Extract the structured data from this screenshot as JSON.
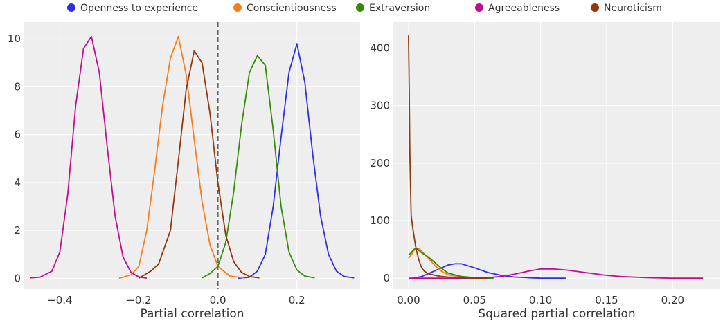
{
  "legend": {
    "placement": "top-center",
    "entries": [
      {
        "name": "Openness to experience",
        "color": "#2a2eec"
      },
      {
        "name": "Conscientiousness",
        "color": "#fa7c17"
      },
      {
        "name": "Extraversion",
        "color": "#328c06"
      },
      {
        "name": "Agreeableness",
        "color": "#c10c90"
      },
      {
        "name": "Neuroticism",
        "color": "#933708"
      }
    ]
  },
  "chart_data": [
    {
      "type": "line",
      "title": "",
      "xlabel": "Partial correlation",
      "ylabel": "",
      "xlim": [
        -0.49,
        0.36
      ],
      "ylim": [
        -0.45,
        10.7
      ],
      "xticks": [
        -0.4,
        -0.2,
        0.0,
        0.2
      ],
      "xtick_labels": [
        "−0.4",
        "−0.2",
        "0.0",
        "0.2"
      ],
      "yticks": [
        0,
        2,
        4,
        6,
        8,
        10
      ],
      "ytick_labels": [
        "0",
        "2",
        "4",
        "6",
        "8",
        "10"
      ],
      "grid": true,
      "reference_line": {
        "x": 0.0,
        "style": "dashed",
        "color": "#666666"
      },
      "series": [
        {
          "name": "Openness to experience",
          "color": "#2a2eec",
          "x": [
            0.05,
            0.08,
            0.1,
            0.12,
            0.14,
            0.16,
            0.18,
            0.2,
            0.22,
            0.24,
            0.26,
            0.28,
            0.3,
            0.32,
            0.345
          ],
          "y": [
            0,
            0.05,
            0.3,
            1.0,
            3.0,
            5.9,
            8.6,
            9.8,
            8.2,
            5.2,
            2.6,
            1.0,
            0.3,
            0.08,
            0.02
          ]
        },
        {
          "name": "Conscientiousness",
          "color": "#fa7c17",
          "x": [
            -0.25,
            -0.22,
            -0.2,
            -0.18,
            -0.16,
            -0.14,
            -0.12,
            -0.1,
            -0.08,
            -0.06,
            -0.04,
            -0.02,
            0.0,
            0.03,
            0.065
          ],
          "y": [
            0,
            0.15,
            0.5,
            2.0,
            4.5,
            7.2,
            9.2,
            10.1,
            8.5,
            5.8,
            3.2,
            1.4,
            0.5,
            0.1,
            0.02
          ]
        },
        {
          "name": "Extraversion",
          "color": "#328c06",
          "x": [
            -0.04,
            -0.02,
            0.0,
            0.02,
            0.04,
            0.06,
            0.08,
            0.1,
            0.12,
            0.14,
            0.16,
            0.18,
            0.2,
            0.22,
            0.245
          ],
          "y": [
            0.02,
            0.2,
            0.5,
            1.5,
            3.6,
            6.4,
            8.6,
            9.3,
            8.9,
            6.2,
            3.0,
            1.1,
            0.35,
            0.1,
            0.02
          ]
        },
        {
          "name": "Agreeableness",
          "color": "#c10c90",
          "x": [
            -0.475,
            -0.45,
            -0.42,
            -0.4,
            -0.38,
            -0.36,
            -0.34,
            -0.32,
            -0.3,
            -0.28,
            -0.26,
            -0.24,
            -0.22,
            -0.2,
            -0.18
          ],
          "y": [
            0.02,
            0.05,
            0.3,
            1.1,
            3.5,
            7.2,
            9.6,
            10.1,
            8.6,
            5.5,
            2.6,
            0.9,
            0.25,
            0.06,
            0.01
          ]
        },
        {
          "name": "Neuroticism",
          "color": "#933708",
          "x": [
            -0.2,
            -0.17,
            -0.15,
            -0.12,
            -0.1,
            -0.08,
            -0.06,
            -0.04,
            -0.02,
            0.0,
            0.02,
            0.04,
            0.06,
            0.08,
            0.105
          ],
          "y": [
            0.01,
            0.3,
            0.6,
            2.0,
            4.9,
            7.9,
            9.5,
            9.0,
            6.9,
            4.0,
            1.8,
            0.7,
            0.25,
            0.08,
            0.02
          ]
        }
      ]
    },
    {
      "type": "line",
      "title": "",
      "xlabel": "Squared partial correlation",
      "ylabel": "",
      "xlim": [
        -0.0115,
        0.236
      ],
      "ylim": [
        -19,
        445
      ],
      "xticks": [
        0.0,
        0.05,
        0.1,
        0.15,
        0.2
      ],
      "xtick_labels": [
        "0.00",
        "0.05",
        "0.10",
        "0.15",
        "0.20"
      ],
      "yticks": [
        0,
        100,
        200,
        300,
        400
      ],
      "ytick_labels": [
        "0",
        "100",
        "200",
        "300",
        "400"
      ],
      "grid": true,
      "series": [
        {
          "name": "Openness to experience",
          "color": "#2a2eec",
          "x": [
            0.003,
            0.01,
            0.02,
            0.03,
            0.035,
            0.04,
            0.05,
            0.06,
            0.07,
            0.08,
            0.09,
            0.1,
            0.11,
            0.119
          ],
          "y": [
            0,
            3,
            13,
            23,
            25,
            25,
            18,
            10,
            5,
            2,
            1,
            0,
            0,
            0
          ]
        },
        {
          "name": "Conscientiousness",
          "color": "#fa7c17",
          "x": [
            0.0,
            0.002,
            0.004,
            0.006,
            0.008,
            0.01,
            0.012,
            0.015,
            0.02,
            0.025,
            0.03,
            0.04,
            0.05,
            0.065
          ],
          "y": [
            35,
            40,
            48,
            52,
            51,
            47,
            42,
            35,
            22,
            12,
            6,
            2,
            0,
            0
          ]
        },
        {
          "name": "Extraversion",
          "color": "#328c06",
          "x": [
            0.0,
            0.002,
            0.004,
            0.006,
            0.008,
            0.01,
            0.013,
            0.016,
            0.02,
            0.025,
            0.03,
            0.04,
            0.05,
            0.064
          ],
          "y": [
            40,
            44,
            50,
            52,
            48,
            44,
            40,
            35,
            27,
            17,
            9,
            3,
            1,
            0
          ]
        },
        {
          "name": "Agreeableness",
          "color": "#c10c90",
          "x": [
            0.0,
            0.02,
            0.04,
            0.06,
            0.07,
            0.08,
            0.09,
            0.1,
            0.11,
            0.12,
            0.13,
            0.14,
            0.15,
            0.16,
            0.18,
            0.2,
            0.223
          ],
          "y": [
            0,
            0,
            0,
            1,
            3,
            7,
            12,
            16,
            16,
            14,
            11,
            8,
            5,
            3,
            1,
            0,
            0
          ]
        },
        {
          "name": "Neuroticism",
          "color": "#933708",
          "x": [
            0.0,
            0.0005,
            0.001,
            0.0015,
            0.002,
            0.003,
            0.004,
            0.005,
            0.006,
            0.008,
            0.01,
            0.012,
            0.015,
            0.02,
            0.025,
            0.03,
            0.04,
            0.05,
            0.06
          ],
          "y": [
            422,
            330,
            220,
            160,
            110,
            90,
            75,
            60,
            48,
            30,
            18,
            12,
            8,
            5,
            3,
            2,
            1,
            0,
            0
          ]
        }
      ]
    }
  ]
}
